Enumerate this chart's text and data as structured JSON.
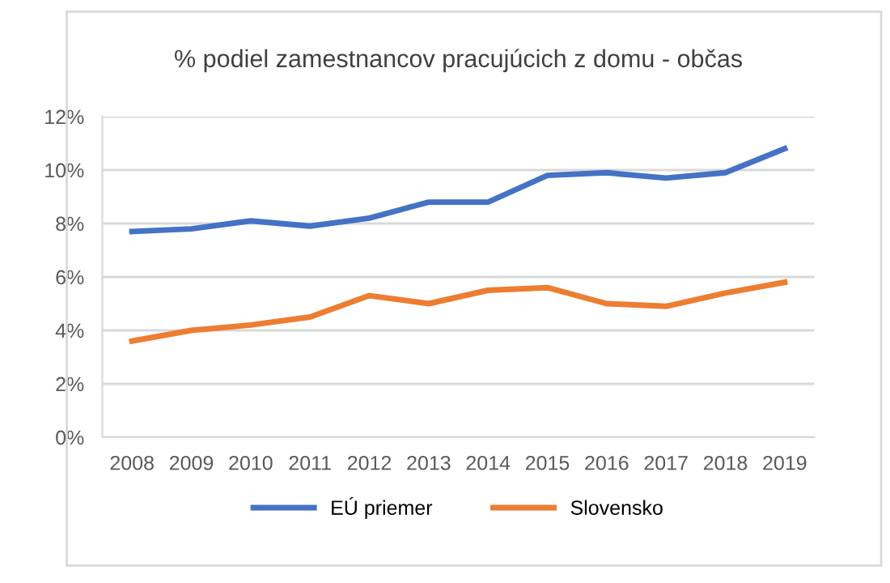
{
  "chart_data": {
    "type": "line",
    "title": "% podiel zamestnancov pracujúcich z domu - občas",
    "categories": [
      "2008",
      "2009",
      "2010",
      "2011",
      "2012",
      "2013",
      "2014",
      "2015",
      "2016",
      "2017",
      "2018",
      "2019"
    ],
    "series": [
      {
        "name": "EÚ priemer",
        "color": "#4472c4",
        "values": [
          7.7,
          7.8,
          8.1,
          7.9,
          8.2,
          8.8,
          8.8,
          9.8,
          9.9,
          9.7,
          9.9,
          10.8
        ]
      },
      {
        "name": "Slovensko",
        "color": "#ed7d31",
        "values": [
          3.6,
          4.0,
          4.2,
          4.5,
          5.3,
          5.0,
          5.5,
          5.6,
          5.0,
          4.9,
          5.4,
          5.8
        ]
      }
    ],
    "ylim": [
      0,
      12
    ],
    "yticks": [
      {
        "value": 0,
        "label": "0%"
      },
      {
        "value": 2,
        "label": "2%"
      },
      {
        "value": 4,
        "label": "4%"
      },
      {
        "value": 6,
        "label": "6%"
      },
      {
        "value": 8,
        "label": "8%"
      },
      {
        "value": 10,
        "label": "10%"
      },
      {
        "value": 12,
        "label": "12%"
      }
    ],
    "grid": "y",
    "legend": "bottom",
    "marker": "none",
    "line_style": "solid"
  }
}
